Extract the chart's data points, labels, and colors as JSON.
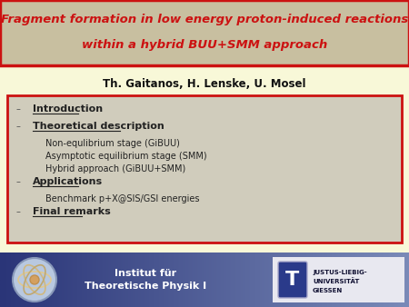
{
  "title_line1": "Fragment formation in low energy proton-induced reactions",
  "title_line2": "within a hybrid BUU+SMM approach",
  "title_color": "#cc1111",
  "title_bg_color": "#c8bfa0",
  "title_border_color": "#cc1111",
  "authors": "Th. Gaitanos, H. Lenske, U. Mosel",
  "authors_color": "#111111",
  "main_bg_color": "#f8f8d8",
  "box_bg_color": "#d0ccbc",
  "box_border_color": "#cc1111",
  "bullet_items": [
    {
      "text": "Introduction",
      "underline": true,
      "indent": 0,
      "bullet": true
    },
    {
      "text": "Theoretical description",
      "underline": true,
      "indent": 0,
      "bullet": true
    },
    {
      "text": "Non-equlibrium stage (GiBUU)",
      "underline": false,
      "indent": 1,
      "bullet": false
    },
    {
      "text": "Asymptotic equilibrium stage (SMM)",
      "underline": false,
      "indent": 1,
      "bullet": false
    },
    {
      "text": "Hybrid approach (GiBUU+SMM)",
      "underline": false,
      "indent": 1,
      "bullet": false
    },
    {
      "text": "Applications",
      "underline": true,
      "indent": 0,
      "bullet": true
    },
    {
      "text": "Benchmark p+X@SIS/GSI energies",
      "underline": false,
      "indent": 1,
      "bullet": false
    },
    {
      "text": "Final remarks",
      "underline": true,
      "indent": 0,
      "bullet": true
    }
  ],
  "bullet_color": "#555555",
  "text_color": "#222222",
  "footer_bg_left": "#2a3578",
  "footer_bg_right": "#7a8ab8",
  "footer_text": "Institut für\nTheoretische Physik I",
  "footer_text_color": "#ffffff",
  "fig_width": 4.5,
  "fig_height": 3.38,
  "dpi": 100
}
